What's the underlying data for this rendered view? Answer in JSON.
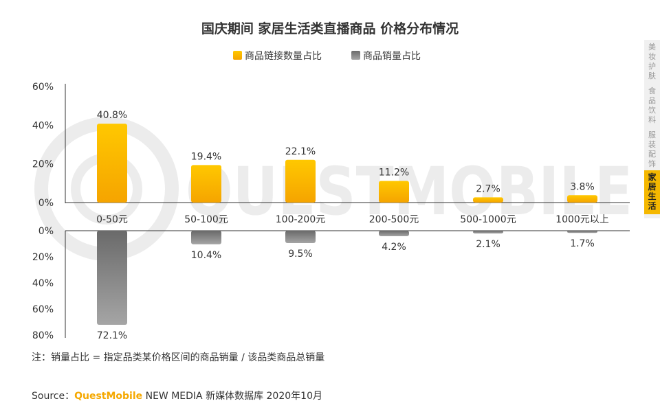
{
  "chart_data": {
    "type": "bar",
    "title": "国庆期间 家居生活类直播商品 价格分布情况",
    "categories": [
      "0-50元",
      "50-100元",
      "100-200元",
      "200-500元",
      "500-1000元",
      "1000元以上"
    ],
    "series": [
      {
        "name": "商品链接数量占比",
        "values": [
          40.8,
          19.4,
          22.1,
          11.2,
          2.7,
          3.8
        ],
        "labels": [
          "40.8%",
          "19.4%",
          "22.1%",
          "11.2%",
          "2.7%",
          "3.8%"
        ],
        "color": "#f5b800"
      },
      {
        "name": "商品销量占比",
        "values": [
          72.1,
          10.4,
          9.5,
          4.2,
          2.1,
          1.7
        ],
        "labels": [
          "72.1%",
          "10.4%",
          "9.5%",
          "4.2%",
          "2.1%",
          "1.7%"
        ],
        "color": "#7a7a7a"
      }
    ],
    "top_axis": {
      "ylim": [
        0,
        60
      ],
      "ticks": [
        "0%",
        "20%",
        "40%",
        "60%"
      ]
    },
    "bottom_axis": {
      "ylim": [
        0,
        80
      ],
      "ticks": [
        "0%",
        "20%",
        "40%",
        "60%",
        "80%"
      ]
    },
    "legend_position": "top-center"
  },
  "note": "注：销量占比 = 指定品类某价格区间的商品销量 / 该品类商品总销量",
  "source": {
    "prefix": "Source：",
    "brand": "QuestMobile",
    "suffix": " NEW MEDIA 新媒体数据库 2020年10月"
  },
  "watermark": "QUESTMOBILE",
  "side_tabs": [
    {
      "label": "美妆护肤",
      "active": false
    },
    {
      "label": "食品饮料",
      "active": false
    },
    {
      "label": "服装配饰",
      "active": false
    },
    {
      "label": "家居生活",
      "active": true
    }
  ],
  "colors": {
    "accent": "#f5b800",
    "gray": "#7a7a7a",
    "tab_active_bg": "#f5b800",
    "tab_bg": "#f0f0f0"
  }
}
